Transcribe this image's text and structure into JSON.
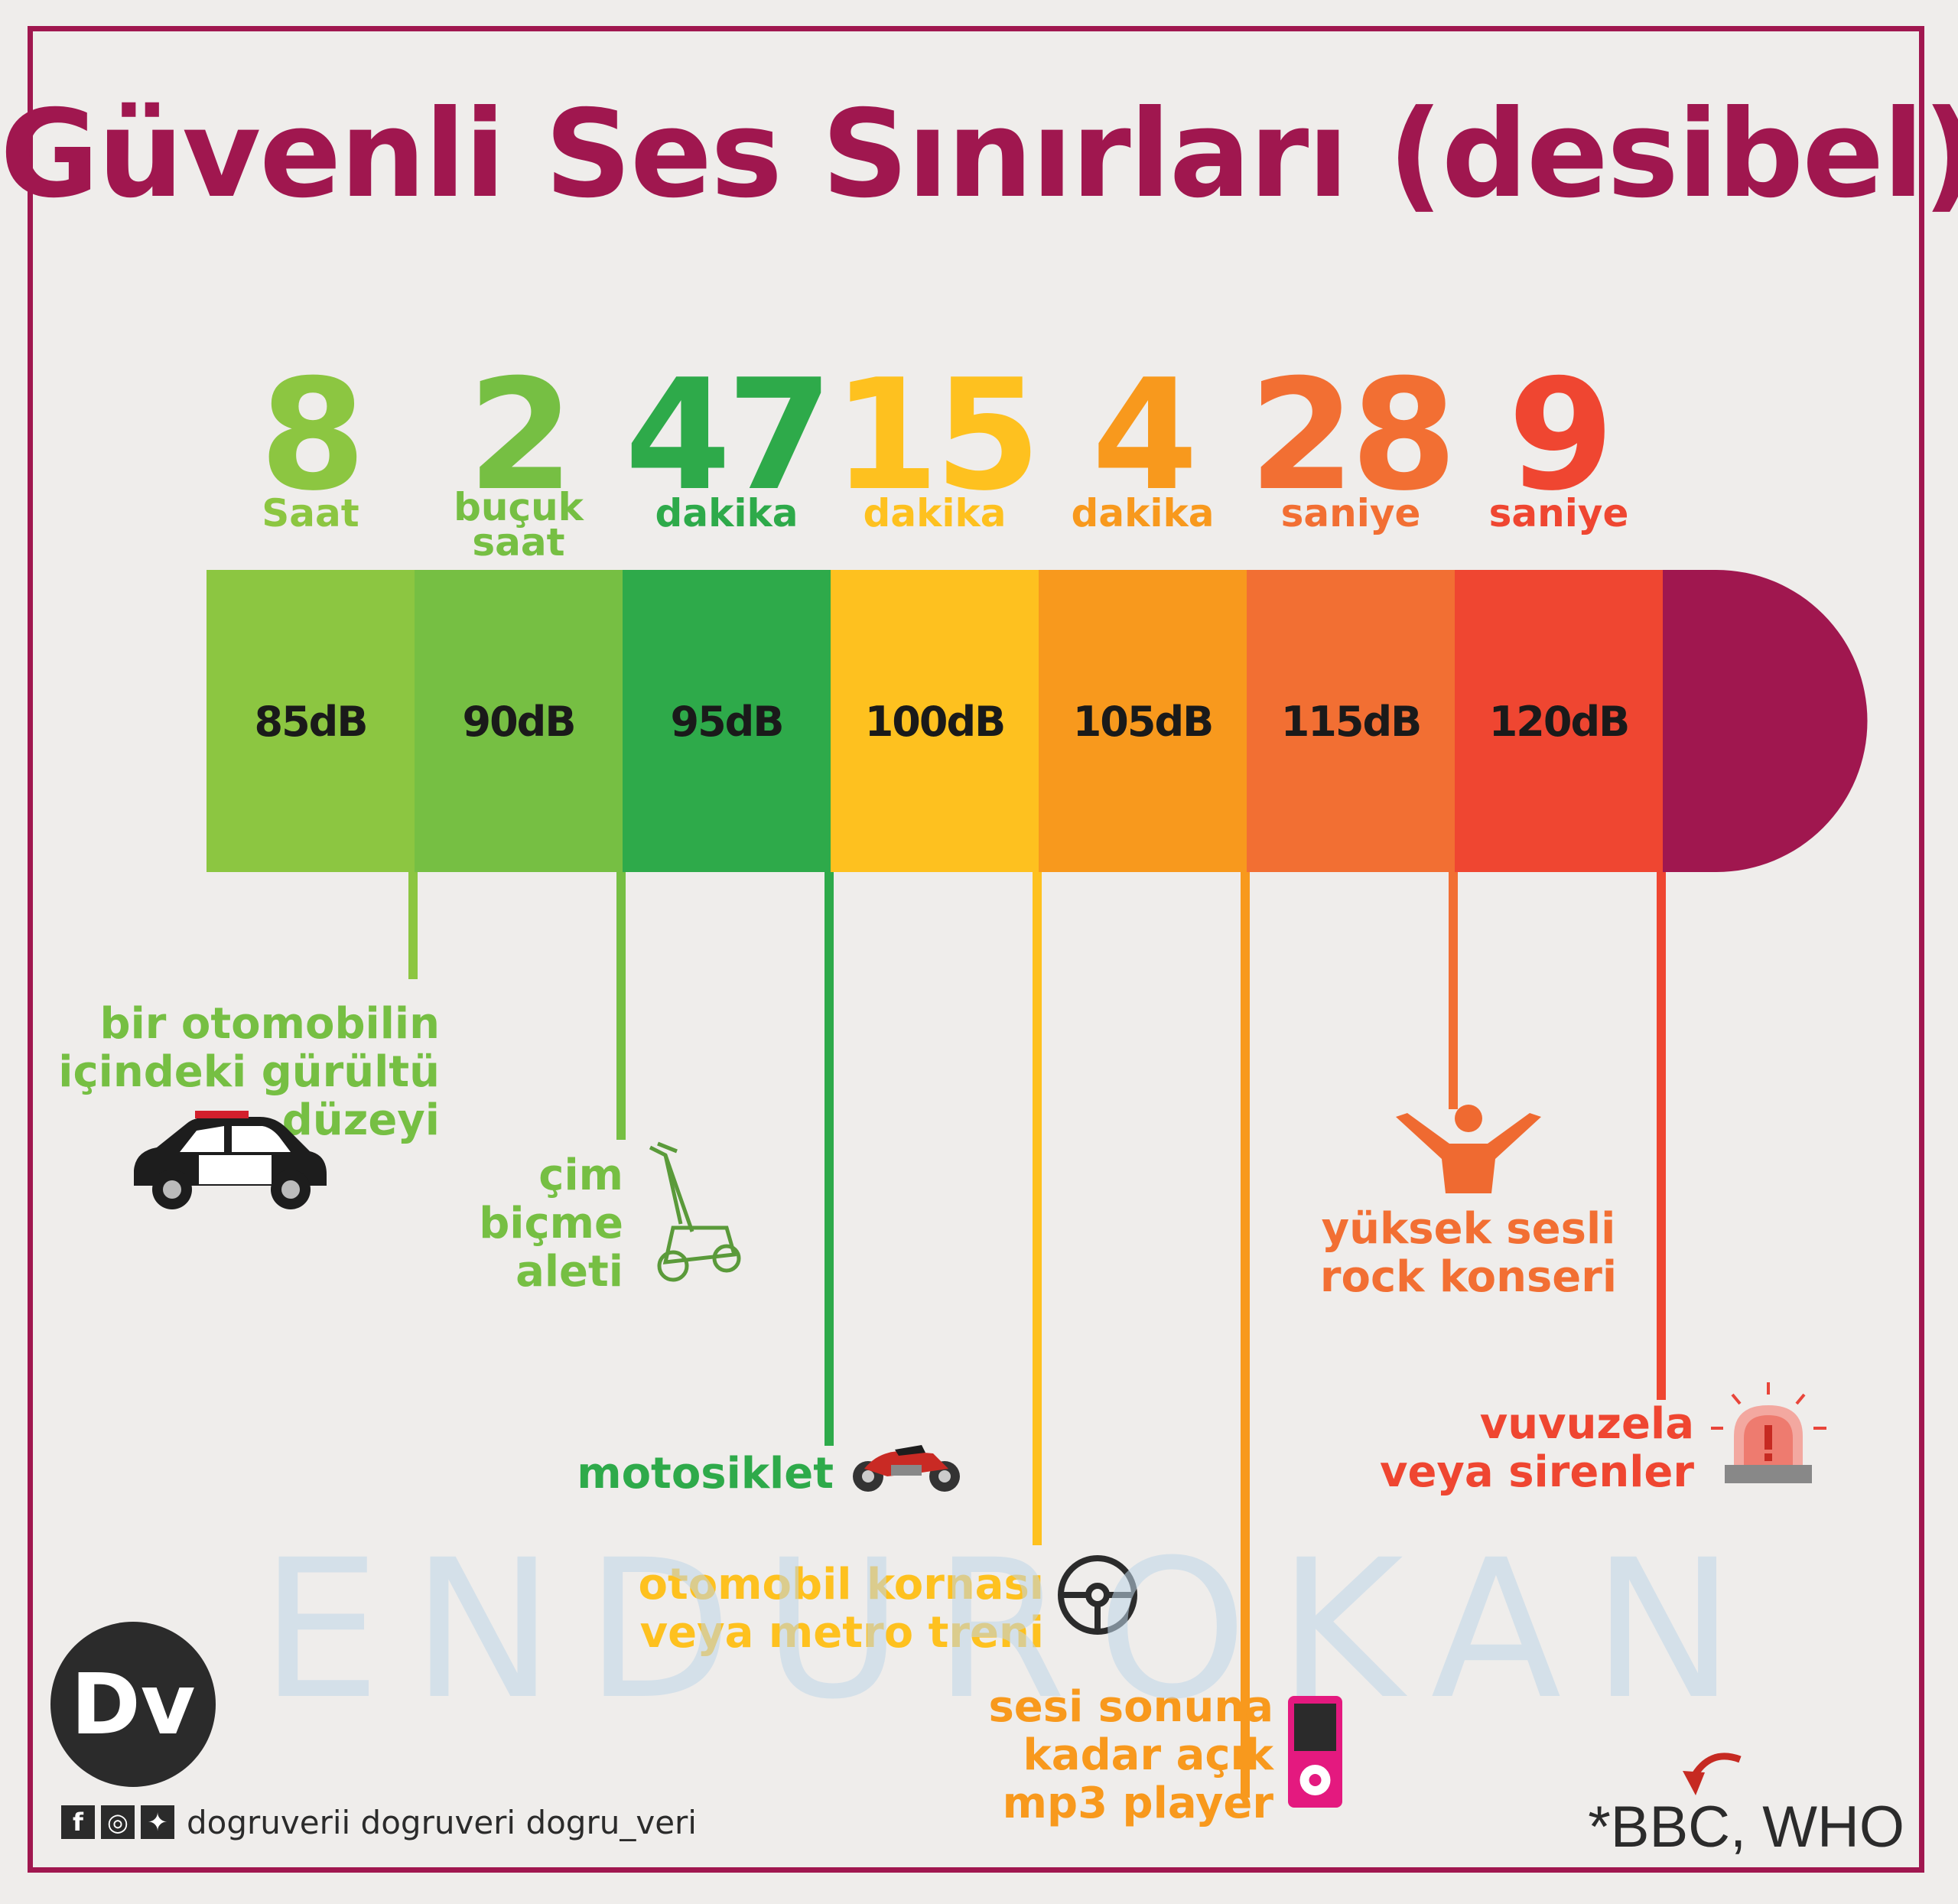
{
  "title": "Güvenli Ses Sınırları (desibel)",
  "chart_data": {
    "type": "bar",
    "title": "Güvenli Ses Sınırları (desibel)",
    "categories": [
      "85dB",
      "90dB",
      "95dB",
      "100dB",
      "105dB",
      "115dB",
      "120dB"
    ],
    "series": [
      {
        "values": [
          8,
          2,
          47,
          15,
          4,
          28,
          9
        ],
        "units": [
          "Saat",
          "buçuk saat",
          "dakika",
          "dakika",
          "dakika",
          "saniye",
          "saniye"
        ]
      }
    ],
    "segments": [
      {
        "db": "85dB",
        "num": "8",
        "unit": "Saat",
        "color": "#8cc641",
        "label": [
          "bir otomobilin",
          "içindeki gürültü",
          "düzeyi"
        ],
        "icon": "car-icon"
      },
      {
        "db": "90dB",
        "num": "2",
        "unit": "buçuk saat",
        "color": "#76bf43",
        "label": [
          "çim",
          "biçme",
          "aleti"
        ],
        "icon": "lawn-mower-icon"
      },
      {
        "db": "95dB",
        "num": "47",
        "unit": "dakika",
        "color": "#2eaa4a",
        "label": [
          "motosiklet"
        ],
        "icon": "motorcycle-icon"
      },
      {
        "db": "100dB",
        "num": "15",
        "unit": "dakika",
        "color": "#fec11f",
        "label": [
          "otomobil kornası",
          "veya metro treni"
        ],
        "icon": "steering-wheel-icon"
      },
      {
        "db": "105dB",
        "num": "4",
        "unit": "dakika",
        "color": "#f8991d",
        "label": [
          "sesi sonuna",
          "kadar açık",
          "mp3 player"
        ],
        "icon": "mp3-player-icon"
      },
      {
        "db": "115dB",
        "num": "28",
        "unit": "saniye",
        "color": "#f26f33",
        "label": [
          "yüksek sesli",
          "rock konseri"
        ],
        "icon": "concert-person-icon"
      },
      {
        "db": "120dB",
        "num": "9",
        "unit": "saniye",
        "color": "#ef4631",
        "label": [
          "vuvuzela",
          "veya sirenler"
        ],
        "icon": "siren-icon"
      }
    ],
    "end_cap_color": "#a0174f"
  },
  "watermark": "ENDUROKAN",
  "logo": "Dv",
  "social": {
    "handles": "dogruverii  dogruveri  dogru_veri",
    "icons": [
      "facebook-icon",
      "instagram-icon",
      "twitter-icon"
    ]
  },
  "source": "*BBC, WHO"
}
